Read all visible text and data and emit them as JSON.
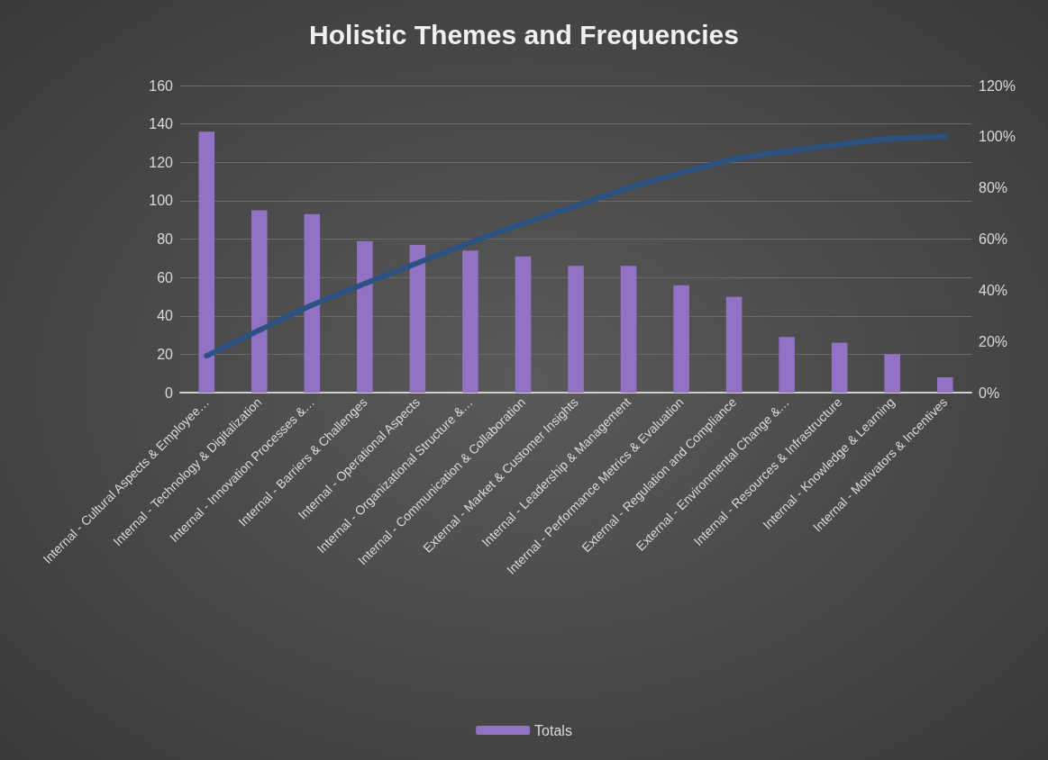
{
  "chart_data": {
    "type": "bar",
    "title": "Holistic Themes and Frequencies",
    "categories": [
      "Internal - Cultural Aspects & Employee…",
      "Internal - Technology & Digitalization",
      "Internal - Innovation Processes &…",
      "Internal - Barriers & Challenges",
      "Internal - Operational Aspects",
      "Internal - Organizational Structure &…",
      "Internal - Communication & Collaboration",
      "External - Market & Customer Insights",
      "Internal - Leadership & Management",
      "Internal - Performance Metrics & Evaluation",
      "External - Regulation and Compliance",
      "External - Environmental Change &…",
      "Internal - Resources & Infrastructure",
      "Internal - Knowledge & Learning",
      "Internal - Motivators & Incentives"
    ],
    "series": [
      {
        "name": "Totals",
        "color": "#9272c4",
        "values": [
          136,
          95,
          93,
          79,
          77,
          74,
          71,
          66,
          66,
          56,
          50,
          29,
          26,
          20,
          8
        ]
      },
      {
        "type": "line",
        "axis": "y2",
        "color": "#2c5282",
        "values": [
          14.4,
          24.4,
          34.2,
          42.6,
          50.7,
          58.6,
          66.1,
          73.0,
          80.0,
          85.9,
          91.2,
          94.3,
          97.0,
          99.2,
          100
        ]
      }
    ],
    "ylim": [
      0,
      160
    ],
    "yticks": [
      0,
      20,
      40,
      60,
      80,
      100,
      120,
      140,
      160
    ],
    "y2lim": [
      0,
      120
    ],
    "y2ticks": [
      {
        "value": 0,
        "label": "0%"
      },
      {
        "value": 20,
        "label": "20%"
      },
      {
        "value": 40,
        "label": "40%"
      },
      {
        "value": 60,
        "label": "60%"
      },
      {
        "value": 80,
        "label": "80%"
      },
      {
        "value": 100,
        "label": "100%"
      },
      {
        "value": 120,
        "label": "120%"
      }
    ],
    "grid": "y",
    "legend": "bottom",
    "marker": "none",
    "line_style": "solid"
  }
}
